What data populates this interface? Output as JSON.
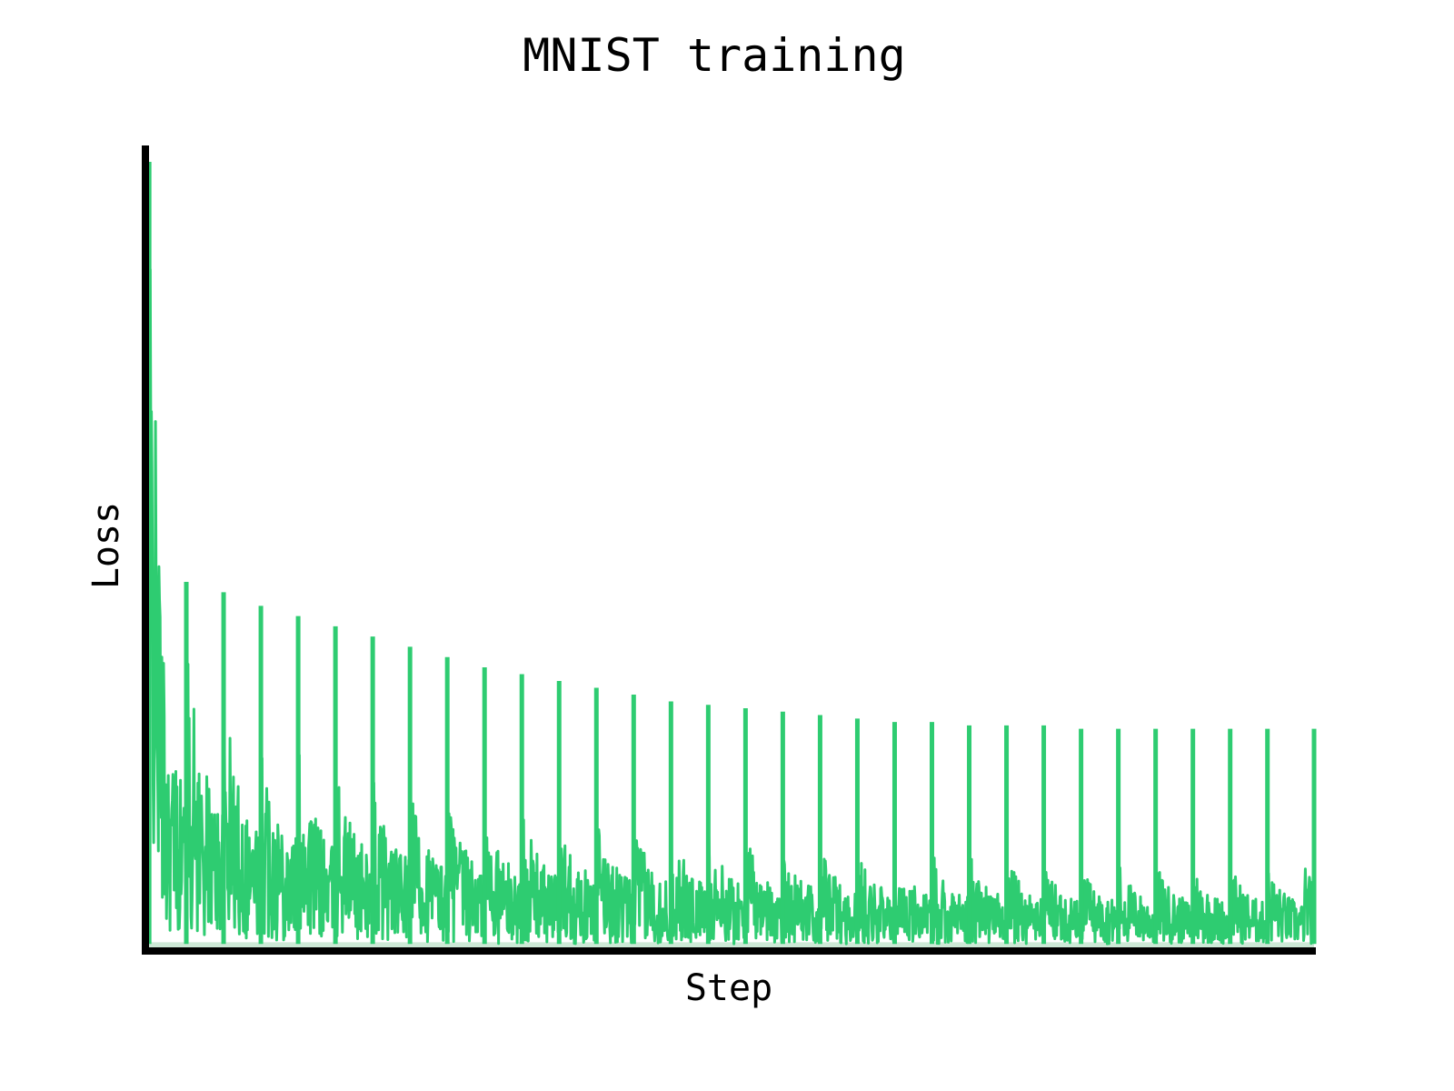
{
  "chart_data": {
    "type": "area",
    "title": "MNIST training",
    "xlabel": "Step",
    "ylabel": "Loss",
    "xticks": [],
    "yticks": [],
    "grid": false,
    "legend": "none",
    "colors": {
      "series": "#2ecc71",
      "shade": "#cde8d6",
      "axis": "#000000"
    },
    "xlim": [
      0,
      2000
    ],
    "ylim": [
      0,
      2.3
    ],
    "series": [
      {
        "name": "loss",
        "period": 64,
        "peaks": [
          {
            "x": 1,
            "y": 2.3
          },
          {
            "x": 64,
            "y": 1.07
          },
          {
            "x": 128,
            "y": 1.04
          },
          {
            "x": 192,
            "y": 1.0
          },
          {
            "x": 256,
            "y": 0.97
          },
          {
            "x": 320,
            "y": 0.94
          },
          {
            "x": 384,
            "y": 0.91
          },
          {
            "x": 448,
            "y": 0.88
          },
          {
            "x": 512,
            "y": 0.85
          },
          {
            "x": 576,
            "y": 0.82
          },
          {
            "x": 640,
            "y": 0.8
          },
          {
            "x": 704,
            "y": 0.78
          },
          {
            "x": 768,
            "y": 0.76
          },
          {
            "x": 832,
            "y": 0.74
          },
          {
            "x": 896,
            "y": 0.72
          },
          {
            "x": 960,
            "y": 0.71
          },
          {
            "x": 1024,
            "y": 0.7
          },
          {
            "x": 1088,
            "y": 0.69
          },
          {
            "x": 1152,
            "y": 0.68
          },
          {
            "x": 1216,
            "y": 0.67
          },
          {
            "x": 1280,
            "y": 0.66
          },
          {
            "x": 1344,
            "y": 0.66
          },
          {
            "x": 1408,
            "y": 0.65
          },
          {
            "x": 1472,
            "y": 0.65
          },
          {
            "x": 1536,
            "y": 0.65
          },
          {
            "x": 1600,
            "y": 0.64
          },
          {
            "x": 1664,
            "y": 0.64
          },
          {
            "x": 1728,
            "y": 0.64
          },
          {
            "x": 1792,
            "y": 0.64
          },
          {
            "x": 1856,
            "y": 0.64
          },
          {
            "x": 1920,
            "y": 0.64
          },
          {
            "x": 2000,
            "y": 0.64
          }
        ],
        "envelope": [
          {
            "x": 0,
            "upper": 2.3,
            "lower": 0.3
          },
          {
            "x": 30,
            "upper": 1.0,
            "lower": 0.05
          },
          {
            "x": 100,
            "upper": 0.8,
            "lower": 0.03
          },
          {
            "x": 200,
            "upper": 0.65,
            "lower": 0.02
          },
          {
            "x": 400,
            "upper": 0.5,
            "lower": 0.02
          },
          {
            "x": 600,
            "upper": 0.42,
            "lower": 0.01
          },
          {
            "x": 800,
            "upper": 0.38,
            "lower": 0.01
          },
          {
            "x": 1000,
            "upper": 0.34,
            "lower": 0.01
          },
          {
            "x": 1200,
            "upper": 0.3,
            "lower": 0.01
          },
          {
            "x": 1400,
            "upper": 0.28,
            "lower": 0.01
          },
          {
            "x": 1600,
            "upper": 0.26,
            "lower": 0.01
          },
          {
            "x": 1800,
            "upper": 0.25,
            "lower": 0.01
          },
          {
            "x": 2000,
            "upper": 0.24,
            "lower": 0.01
          }
        ]
      }
    ]
  }
}
